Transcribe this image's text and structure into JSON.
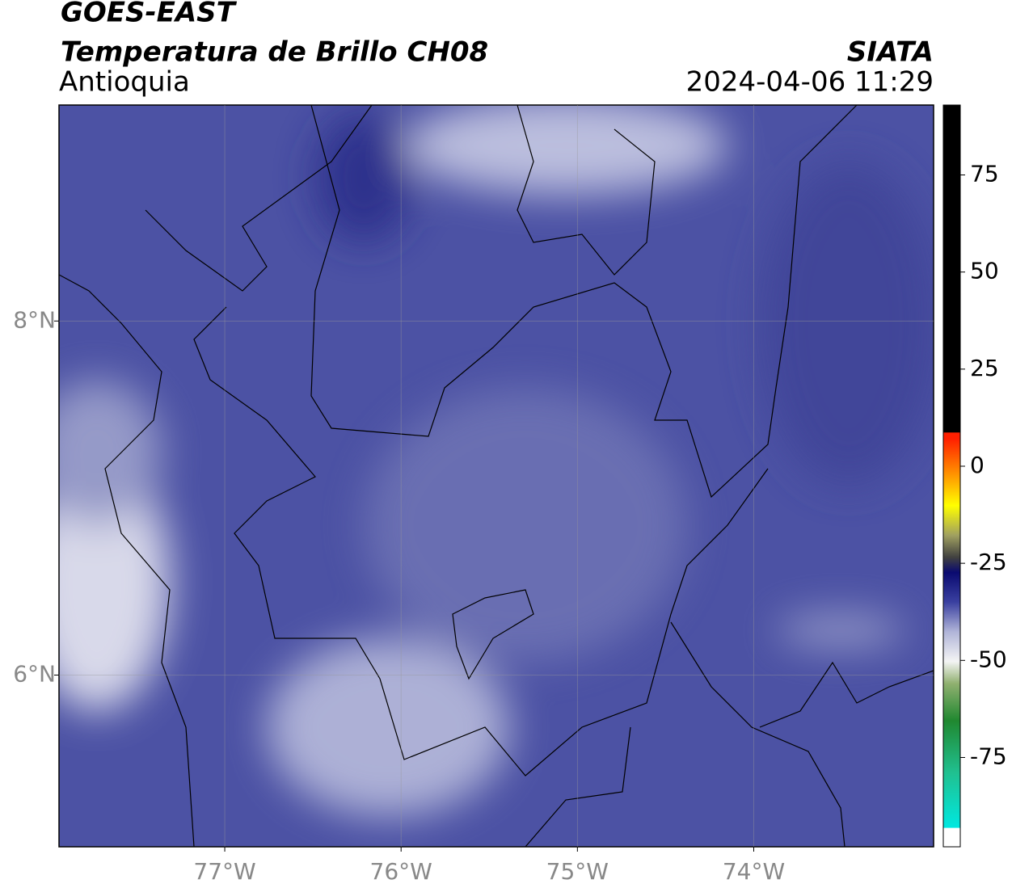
{
  "header": {
    "title": "GOES-EAST",
    "subtitle": "Temperatura de Brillo CH08",
    "region": "Antioquia",
    "source": "SIATA",
    "datetime": "2024-04-06 11:29"
  },
  "map": {
    "xlim": [
      -77.94,
      -72.98
    ],
    "ylim": [
      5.03,
      9.22
    ],
    "xticks": [
      {
        "value": -77,
        "label": "77°W"
      },
      {
        "value": -76,
        "label": "76°W"
      },
      {
        "value": -75,
        "label": "75°W"
      },
      {
        "value": -74,
        "label": "74°W"
      }
    ],
    "yticks": [
      {
        "value": 8,
        "label": "8°N"
      },
      {
        "value": 6,
        "label": "6°N"
      }
    ],
    "grid": true
  },
  "colorbar": {
    "lim": [
      -98,
      93
    ],
    "ticks": [
      75,
      50,
      25,
      0,
      -25,
      -50,
      -75
    ]
  }
}
